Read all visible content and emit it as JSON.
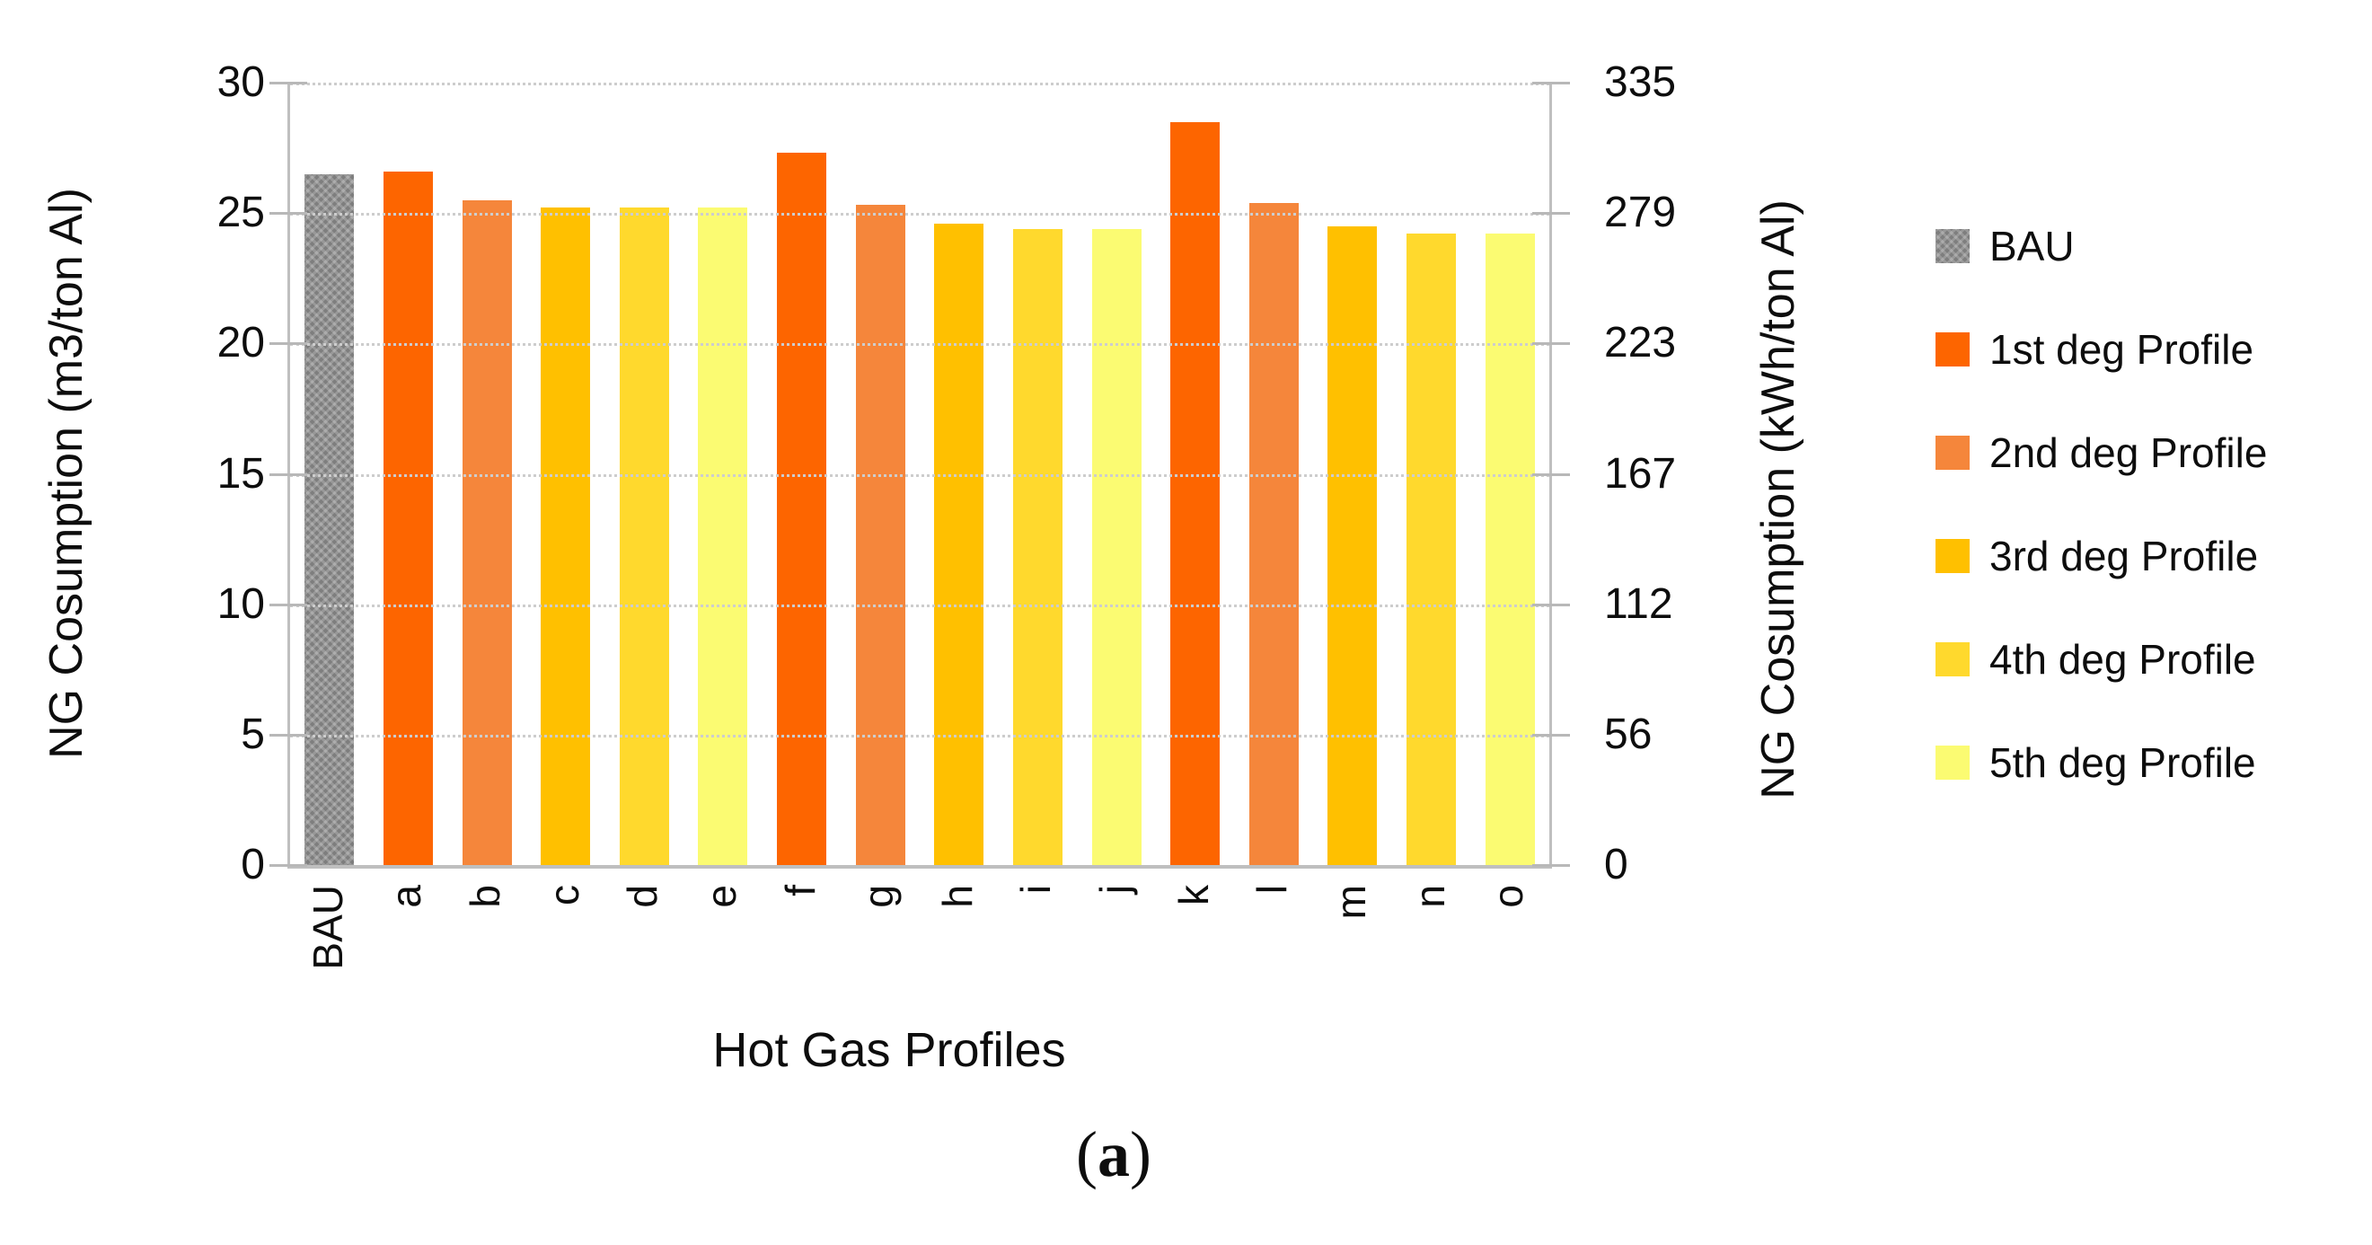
{
  "chart_data": {
    "type": "bar",
    "title": "",
    "xlabel": "Hot Gas Profiles",
    "ylabel_left": "NG Cosumption (m3/ton Al)",
    "ylabel_right": "NG Cosumption (kWh/ton Al)",
    "ylim_left": [
      0,
      30
    ],
    "ylim_right": [
      0,
      335
    ],
    "y_ticks_left": [
      "30",
      "25",
      "20",
      "15",
      "10",
      "5",
      "0"
    ],
    "y_ticks_right": [
      "335",
      "279",
      "223",
      "167",
      "112",
      "56",
      "0"
    ],
    "grid": true,
    "legend_position": "right",
    "categories": [
      "BAU",
      "a",
      "b",
      "c",
      "d",
      "e",
      "f",
      "g",
      "h",
      "i",
      "j",
      "k",
      "l",
      "m",
      "n",
      "o"
    ],
    "values_m3_per_ton_al": [
      26.5,
      26.6,
      25.5,
      25.2,
      25.2,
      25.2,
      27.3,
      25.3,
      24.6,
      24.4,
      24.4,
      28.5,
      25.4,
      24.5,
      24.2,
      24.2
    ],
    "bar_series_index": [
      0,
      1,
      2,
      3,
      4,
      5,
      1,
      2,
      3,
      4,
      5,
      1,
      2,
      3,
      4,
      5
    ]
  },
  "legend": {
    "items": [
      {
        "label": "BAU",
        "color": "#7e7e7e",
        "patterned": true
      },
      {
        "label": "1st deg Profile",
        "color": "#fd6500",
        "patterned": false
      },
      {
        "label": "2nd deg Profile",
        "color": "#f5863b",
        "patterned": false
      },
      {
        "label": "3rd deg Profile",
        "color": "#ffc000",
        "patterned": false
      },
      {
        "label": "4th deg Profile",
        "color": "#ffd92d",
        "patterned": false
      },
      {
        "label": "5th deg Profile",
        "color": "#fbfb72",
        "patterned": false
      }
    ]
  },
  "caption": {
    "prefix": "(",
    "label": "a",
    "suffix": ")"
  },
  "colors": {
    "gridline": "#cdcdcd",
    "axis_line": "#bfbfbf",
    "text": "#0d0d0d"
  }
}
